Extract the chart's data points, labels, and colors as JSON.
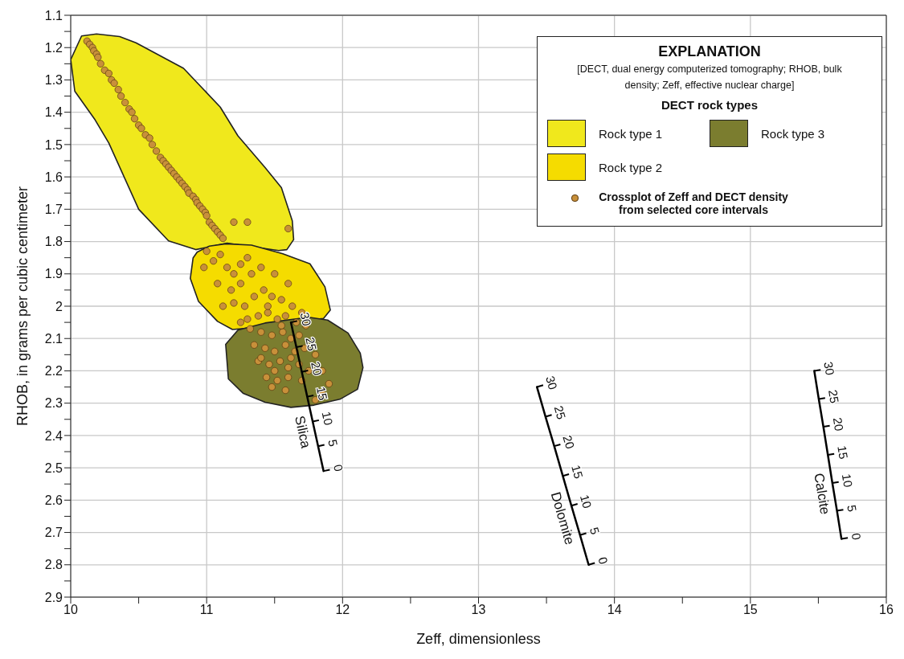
{
  "chart_data": {
    "type": "scatter",
    "xlabel": "Zeff, dimensionless",
    "ylabel": "RHOB, in grams per cubic centimeter",
    "legend_title": "EXPLANATION",
    "annotations": [
      "[DECT, dual energy computerized tomography; RHOB, bulk density; Zeff, effective nuclear charge]",
      "DECT rock types",
      {
        "text": "30",
        "x": 11.62,
        "y": 2.05
      },
      {
        "text": "25",
        "x": 11.66,
        "y": 2.127
      },
      {
        "text": "20",
        "x": 11.7,
        "y": 2.203
      },
      {
        "text": "15",
        "x": 11.74,
        "y": 2.28
      },
      {
        "text": "10",
        "x": 11.78,
        "y": 2.357
      },
      {
        "text": "5",
        "x": 11.82,
        "y": 2.433
      },
      {
        "text": "0",
        "x": 11.86,
        "y": 2.51
      },
      {
        "text": "30",
        "x": 13.43,
        "y": 2.25
      },
      {
        "text": "25",
        "x": 13.493,
        "y": 2.342
      },
      {
        "text": "20",
        "x": 13.557,
        "y": 2.433
      },
      {
        "text": "15",
        "x": 13.62,
        "y": 2.525
      },
      {
        "text": "10",
        "x": 13.683,
        "y": 2.617
      },
      {
        "text": "5",
        "x": 13.747,
        "y": 2.708
      },
      {
        "text": "0",
        "x": 13.81,
        "y": 2.8
      },
      {
        "text": "30",
        "x": 15.47,
        "y": 2.2
      },
      {
        "text": "25",
        "x": 15.503,
        "y": 2.287
      },
      {
        "text": "20",
        "x": 15.537,
        "y": 2.373
      },
      {
        "text": "15",
        "x": 15.57,
        "y": 2.46
      },
      {
        "text": "10",
        "x": 15.603,
        "y": 2.547
      },
      {
        "text": "5",
        "x": 15.637,
        "y": 2.633
      },
      {
        "text": "0",
        "x": 15.67,
        "y": 2.72
      }
    ],
    "xlim": [
      10,
      16
    ],
    "xticks": [
      10,
      {
        "value": 10.5,
        "label": null
      },
      11,
      {
        "value": 11.5,
        "label": null
      },
      12,
      {
        "value": 12.5,
        "label": null
      },
      13,
      {
        "value": 13.5,
        "label": null
      },
      14,
      {
        "value": 14.5,
        "label": null
      },
      15,
      {
        "value": 15.5,
        "label": null
      },
      16
    ],
    "ylim": [
      2.9,
      1.1
    ],
    "yticks": [
      {
        "value": 1.1,
        "label": "1.1"
      },
      {
        "value": 1.15,
        "label": null
      },
      {
        "value": 1.2,
        "label": "1.2"
      },
      {
        "value": 1.25,
        "label": null
      },
      {
        "value": 1.3,
        "label": "1.3"
      },
      {
        "value": 1.35,
        "label": null
      },
      {
        "value": 1.4,
        "label": "1.4"
      },
      {
        "value": 1.45,
        "label": null
      },
      {
        "value": 1.5,
        "label": "1.5"
      },
      {
        "value": 1.55,
        "label": null
      },
      {
        "value": 1.6,
        "label": "1.6"
      },
      {
        "value": 1.65,
        "label": null
      },
      {
        "value": 1.7,
        "label": "1.7"
      },
      {
        "value": 1.75,
        "label": null
      },
      {
        "value": 1.8,
        "label": "1.8"
      },
      {
        "value": 1.85,
        "label": null
      },
      {
        "value": 1.9,
        "label": "1.9"
      },
      {
        "value": 1.95,
        "label": null
      },
      {
        "value": 2,
        "label": "2"
      },
      {
        "value": 2.05,
        "label": null
      },
      {
        "value": 2.1,
        "label": "2.1"
      },
      {
        "value": 2.15,
        "label": null
      },
      {
        "value": 2.2,
        "label": "2.2"
      },
      {
        "value": 2.25,
        "label": null
      },
      {
        "value": 2.3,
        "label": "2.3"
      },
      {
        "value": 2.35,
        "label": null
      },
      {
        "value": 2.4,
        "label": "2.4"
      },
      {
        "value": 2.45,
        "label": null
      },
      {
        "value": 2.5,
        "label": "2.5"
      },
      {
        "value": 2.55,
        "label": null
      },
      {
        "value": 2.6,
        "label": "2.6"
      },
      {
        "value": 2.65,
        "label": null
      },
      {
        "value": 2.7,
        "label": "2.7"
      },
      {
        "value": 2.75,
        "label": null
      },
      {
        "value": 2.8,
        "label": "2.8"
      },
      {
        "value": 2.85,
        "label": null
      },
      {
        "value": 2.9,
        "label": "2.9"
      }
    ],
    "grid": true,
    "legend": "top right",
    "marker": "circle",
    "series": [
      {
        "type": "area",
        "name": "Rock type 1",
        "color": "#f0e81c",
        "marker": "none",
        "x": [
          10.08,
          10.19,
          10.36,
          10.48,
          10.83,
          11.1,
          11.23,
          11.43,
          11.55,
          11.63,
          11.64,
          11.59,
          11.53,
          11.15,
          10.92,
          10.72,
          10.5,
          10.28,
          10.18,
          10.03,
          10.0
        ],
        "values": [
          1.164,
          1.158,
          1.166,
          1.185,
          1.264,
          1.384,
          1.473,
          1.571,
          1.633,
          1.736,
          1.794,
          1.825,
          1.828,
          1.805,
          1.825,
          1.798,
          1.7,
          1.495,
          1.424,
          1.335,
          1.237
        ]
      },
      {
        "type": "area",
        "name": "Rock type 2",
        "color": "#f5dc00",
        "marker": "none",
        "x": [
          10.93,
          11.02,
          11.14,
          11.33,
          11.56,
          11.76,
          11.87,
          11.91,
          11.86,
          11.64,
          11.39,
          11.19,
          11.08,
          10.94,
          10.88,
          10.9
        ],
        "values": [
          1.833,
          1.814,
          1.807,
          1.811,
          1.838,
          1.869,
          1.94,
          2.012,
          2.038,
          2.047,
          2.065,
          2.072,
          2.047,
          1.985,
          1.914,
          1.851
        ]
      },
      {
        "type": "area",
        "name": "Rock type 3",
        "color": "#7b7d2f",
        "marker": "none",
        "x": [
          11.23,
          11.43,
          11.75,
          11.89,
          12.04,
          12.13,
          12.15,
          12.11,
          11.98,
          11.79,
          11.62,
          11.43,
          11.27,
          11.16,
          11.14
        ],
        "values": [
          2.074,
          2.052,
          2.034,
          2.043,
          2.083,
          2.145,
          2.19,
          2.257,
          2.288,
          2.306,
          2.313,
          2.297,
          2.27,
          2.225,
          2.118
        ]
      },
      {
        "name": "Crossplot of Zeff and DECT density from selected core intervals",
        "color": "#c8903a",
        "x": [
          10.12,
          10.14,
          10.16,
          10.17,
          10.19,
          10.2,
          10.22,
          10.25,
          10.28,
          10.3,
          10.32,
          10.35,
          10.37,
          10.4,
          10.43,
          10.45,
          10.47,
          10.5,
          10.52,
          10.55,
          10.58,
          10.6,
          10.63,
          10.66,
          10.68,
          10.7,
          10.72,
          10.74,
          10.76,
          10.78,
          10.8,
          10.82,
          10.84,
          10.86,
          10.87,
          10.9,
          10.92,
          10.93,
          10.95,
          10.97,
          10.99,
          11.0,
          11.02,
          11.04,
          11.06,
          11.08,
          11.1,
          11.12,
          11.2,
          11.3,
          11.6,
          11.0,
          11.05,
          10.98,
          11.1,
          11.15,
          11.2,
          11.25,
          11.3,
          11.08,
          11.18,
          11.25,
          11.33,
          11.4,
          11.5,
          11.6,
          11.2,
          11.12,
          11.28,
          11.35,
          11.42,
          11.48,
          11.55,
          11.63,
          11.7,
          11.3,
          11.38,
          11.45,
          11.52,
          11.58,
          11.66,
          11.73,
          11.32,
          11.4,
          11.48,
          11.56,
          11.62,
          11.68,
          11.35,
          11.43,
          11.5,
          11.58,
          11.65,
          11.72,
          11.8,
          11.38,
          11.46,
          11.54,
          11.6,
          11.68,
          11.75,
          11.85,
          11.44,
          11.52,
          11.6,
          11.7,
          11.9,
          11.48,
          11.58,
          11.85,
          11.8,
          11.25,
          11.4,
          11.55,
          11.45,
          11.62,
          11.5
        ],
        "values": [
          1.18,
          1.19,
          1.2,
          1.21,
          1.22,
          1.23,
          1.25,
          1.27,
          1.28,
          1.3,
          1.31,
          1.33,
          1.35,
          1.37,
          1.39,
          1.4,
          1.42,
          1.44,
          1.45,
          1.47,
          1.48,
          1.5,
          1.52,
          1.54,
          1.55,
          1.56,
          1.57,
          1.58,
          1.59,
          1.6,
          1.61,
          1.62,
          1.63,
          1.64,
          1.65,
          1.66,
          1.67,
          1.68,
          1.69,
          1.7,
          1.71,
          1.72,
          1.74,
          1.75,
          1.76,
          1.77,
          1.78,
          1.79,
          1.74,
          1.74,
          1.76,
          1.83,
          1.86,
          1.88,
          1.84,
          1.88,
          1.9,
          1.87,
          1.85,
          1.93,
          1.95,
          1.93,
          1.9,
          1.88,
          1.9,
          1.93,
          1.99,
          2.0,
          2.0,
          1.97,
          1.95,
          1.97,
          1.98,
          2.0,
          2.02,
          2.04,
          2.03,
          2.02,
          2.04,
          2.03,
          2.05,
          2.06,
          2.07,
          2.08,
          2.09,
          2.08,
          2.1,
          2.09,
          2.12,
          2.13,
          2.14,
          2.12,
          2.14,
          2.13,
          2.15,
          2.17,
          2.18,
          2.17,
          2.19,
          2.18,
          2.2,
          2.2,
          2.22,
          2.23,
          2.22,
          2.23,
          2.24,
          2.25,
          2.26,
          2.27,
          2.29,
          2.05,
          2.16,
          2.06,
          2.0,
          2.16,
          2.2
        ]
      },
      {
        "type": "line",
        "name": "Silica",
        "color": "#000000",
        "marker": "none",
        "x": [
          11.62,
          11.66,
          11.7,
          11.74,
          11.78,
          11.82,
          11.86
        ],
        "values": [
          2.05,
          2.127,
          2.203,
          2.28,
          2.357,
          2.433,
          2.51
        ]
      },
      {
        "type": "line",
        "name": "Dolomite",
        "color": "#000000",
        "marker": "none",
        "x": [
          13.43,
          13.493,
          13.557,
          13.62,
          13.683,
          13.747,
          13.81
        ],
        "values": [
          2.25,
          2.342,
          2.433,
          2.525,
          2.617,
          2.708,
          2.8
        ]
      },
      {
        "type": "line",
        "name": "Calcite",
        "color": "#000000",
        "marker": "none",
        "x": [
          15.47,
          15.503,
          15.537,
          15.57,
          15.603,
          15.637,
          15.67
        ],
        "values": [
          2.2,
          2.287,
          2.373,
          2.46,
          2.547,
          2.633,
          2.72
        ]
      }
    ]
  }
}
